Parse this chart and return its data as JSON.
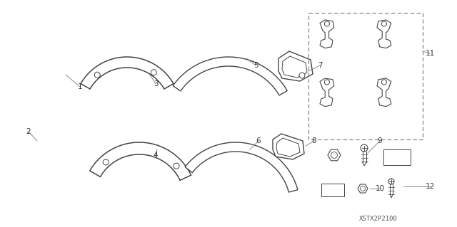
{
  "bg_color": "#ffffff",
  "fig_width": 6.4,
  "fig_height": 3.19,
  "dpi": 100,
  "part_number_text": "XSTX2P2100",
  "line_color": "#444444"
}
